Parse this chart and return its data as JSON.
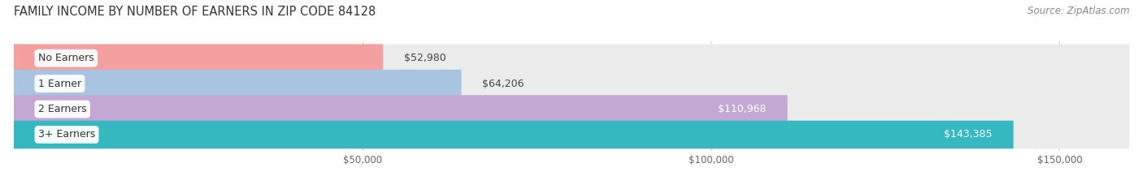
{
  "title": "FAMILY INCOME BY NUMBER OF EARNERS IN ZIP CODE 84128",
  "source": "Source: ZipAtlas.com",
  "categories": [
    "No Earners",
    "1 Earner",
    "2 Earners",
    "3+ Earners"
  ],
  "values": [
    52980,
    64206,
    110968,
    143385
  ],
  "bar_colors": [
    "#f4a0a0",
    "#a8c4e0",
    "#c4a8d4",
    "#35b8c0"
  ],
  "bar_bg_color": "#ebebeb",
  "background_color": "#ffffff",
  "xlim": [
    0,
    160000
  ],
  "xticks": [
    50000,
    100000,
    150000
  ],
  "xtick_labels": [
    "$50,000",
    "$100,000",
    "$150,000"
  ],
  "title_fontsize": 10.5,
  "source_fontsize": 8.5,
  "label_fontsize": 9,
  "value_fontsize": 9,
  "bar_height": 0.55
}
